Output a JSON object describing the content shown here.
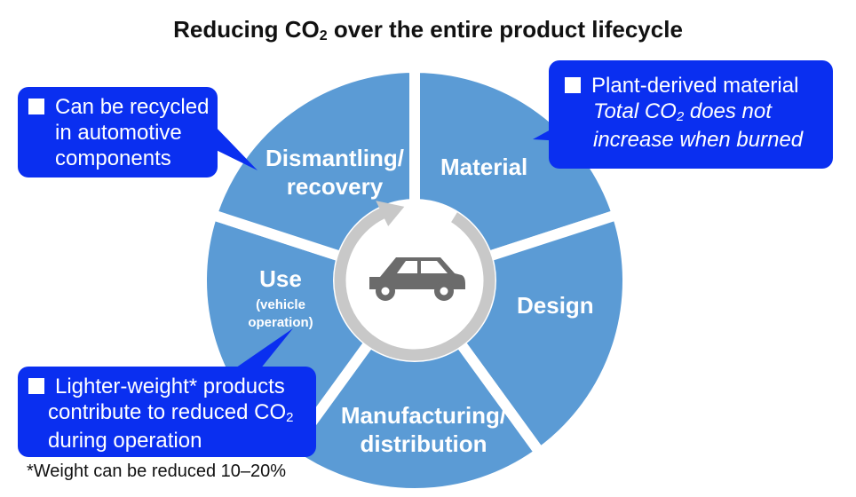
{
  "title": {
    "prefix": "Reducing CO",
    "sub": "2",
    "suffix": " over the entire product lifecycle"
  },
  "colors": {
    "segment": "#5b9bd5",
    "callout": "#0a2ff0",
    "arrow": "#c8c8c8",
    "car": "#6b6b6b"
  },
  "stages": {
    "material": "Material",
    "design": "Design",
    "manufacturing_1": "Manufacturing/",
    "manufacturing_2": "distribution",
    "use": "Use",
    "use_sub_1": "(vehicle",
    "use_sub_2": "operation)",
    "dismantling_1": "Dismantling/",
    "dismantling_2": "recovery"
  },
  "callouts": {
    "plant": {
      "heading": "Plant-derived material",
      "line2_prefix": "Total CO",
      "line2_sub": "2",
      "line2_suffix": " does not",
      "line3": "increase when burned"
    },
    "recycle": {
      "line1": "Can be recycled",
      "line2": "in automotive",
      "line3": "components"
    },
    "lighter": {
      "line1": "Lighter-weight* products",
      "line2_prefix": "contribute to reduced CO",
      "line2_sub": "2",
      "line3": "during operation"
    }
  },
  "footnote": "*Weight can be reduced 10–20%",
  "center_icon": "car-icon"
}
